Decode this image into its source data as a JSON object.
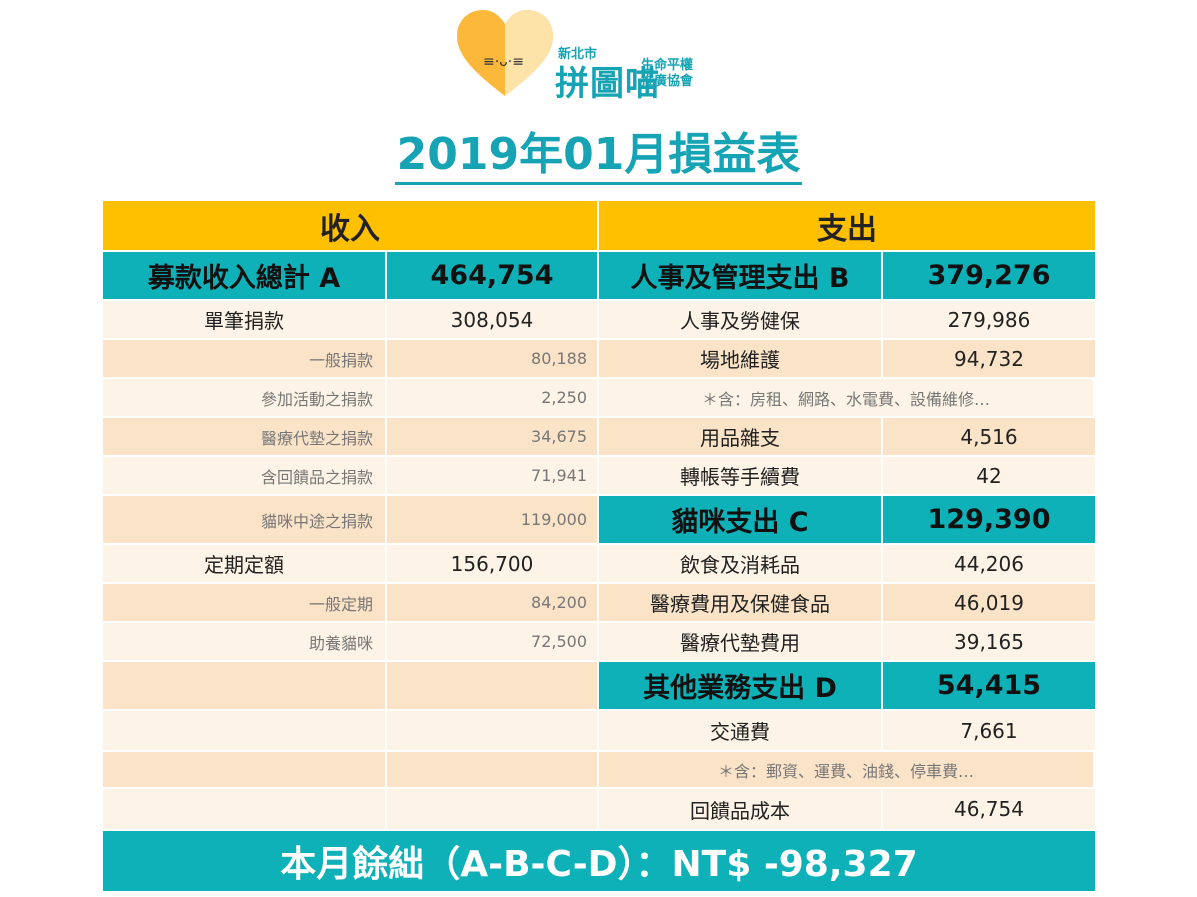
{
  "logo": {
    "region": "新北市",
    "name": "拼圖喵",
    "org_line1": "生命平權",
    "org_line2": "推廣協會"
  },
  "title": "2019年01月損益表",
  "headers": {
    "income": "收入",
    "expense": "支出"
  },
  "rows": [
    {
      "a": "募款收入總計 A",
      "b": "464,754",
      "c": "人事及管理支出 B",
      "d": "379,276"
    },
    {
      "a": "單筆捐款",
      "b": "308,054",
      "c": "人事及勞健保",
      "d": "279,986"
    },
    {
      "a": "一般捐款",
      "b": "80,188",
      "c": "場地維護",
      "d": "94,732"
    },
    {
      "a": "參加活動之捐款",
      "b": "2,250",
      "c": "＊含：房租、網路、水電費、設備維修…",
      "d": ""
    },
    {
      "a": "醫療代墊之捐款",
      "b": "34,675",
      "c": "用品雜支",
      "d": "4,516"
    },
    {
      "a": "含回饋品之捐款",
      "b": "71,941",
      "c": "轉帳等手續費",
      "d": "42"
    },
    {
      "a": "貓咪中途之捐款",
      "b": "119,000",
      "c": "貓咪支出 C",
      "d": "129,390"
    },
    {
      "a": "定期定額",
      "b": "156,700",
      "c": "飲食及消耗品",
      "d": "44,206"
    },
    {
      "a": "一般定期",
      "b": "84,200",
      "c": "醫療費用及保健食品",
      "d": "46,019"
    },
    {
      "a": "助養貓咪",
      "b": "72,500",
      "c": "醫療代墊費用",
      "d": "39,165"
    },
    {
      "a": "",
      "b": "",
      "c": "其他業務支出 D",
      "d": "54,415"
    },
    {
      "a": "",
      "b": "",
      "c": "交通費",
      "d": "7,661"
    },
    {
      "a": "",
      "b": "",
      "c": "＊含：郵資、運費、油錢、停車費…",
      "d": ""
    },
    {
      "a": "",
      "b": "",
      "c": "回饋品成本",
      "d": "46,754"
    }
  ],
  "total": "本月餘絀（A-B-C-D）：NT$ -98,327",
  "colors": {
    "accent_teal": "#0eb1b8",
    "header_yellow": "#ffc000",
    "row_light": "#fdf3e6",
    "row_peach": "#fbe3c8"
  }
}
